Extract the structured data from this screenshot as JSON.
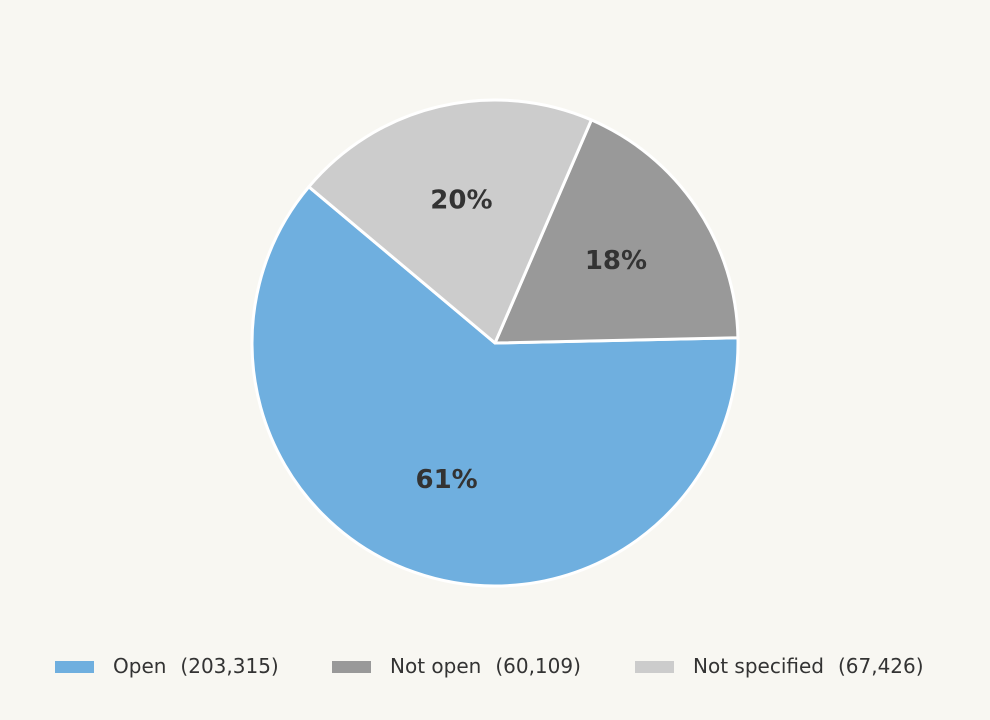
{
  "chart_data": {
    "type": "pie",
    "categories": [
      "Open",
      "Not open",
      "Not specified"
    ],
    "values": [
      203315,
      60109,
      67426
    ],
    "count_labels": [
      "(203,315)",
      "(60,109)",
      "(67,426)"
    ],
    "percents": [
      61.45,
      18.17,
      20.38
    ],
    "percent_labels": [
      "61%",
      "18%",
      "20%"
    ],
    "colors": [
      "#6fafdf",
      "#999999",
      "#cccccc"
    ],
    "legend": "bottom"
  }
}
